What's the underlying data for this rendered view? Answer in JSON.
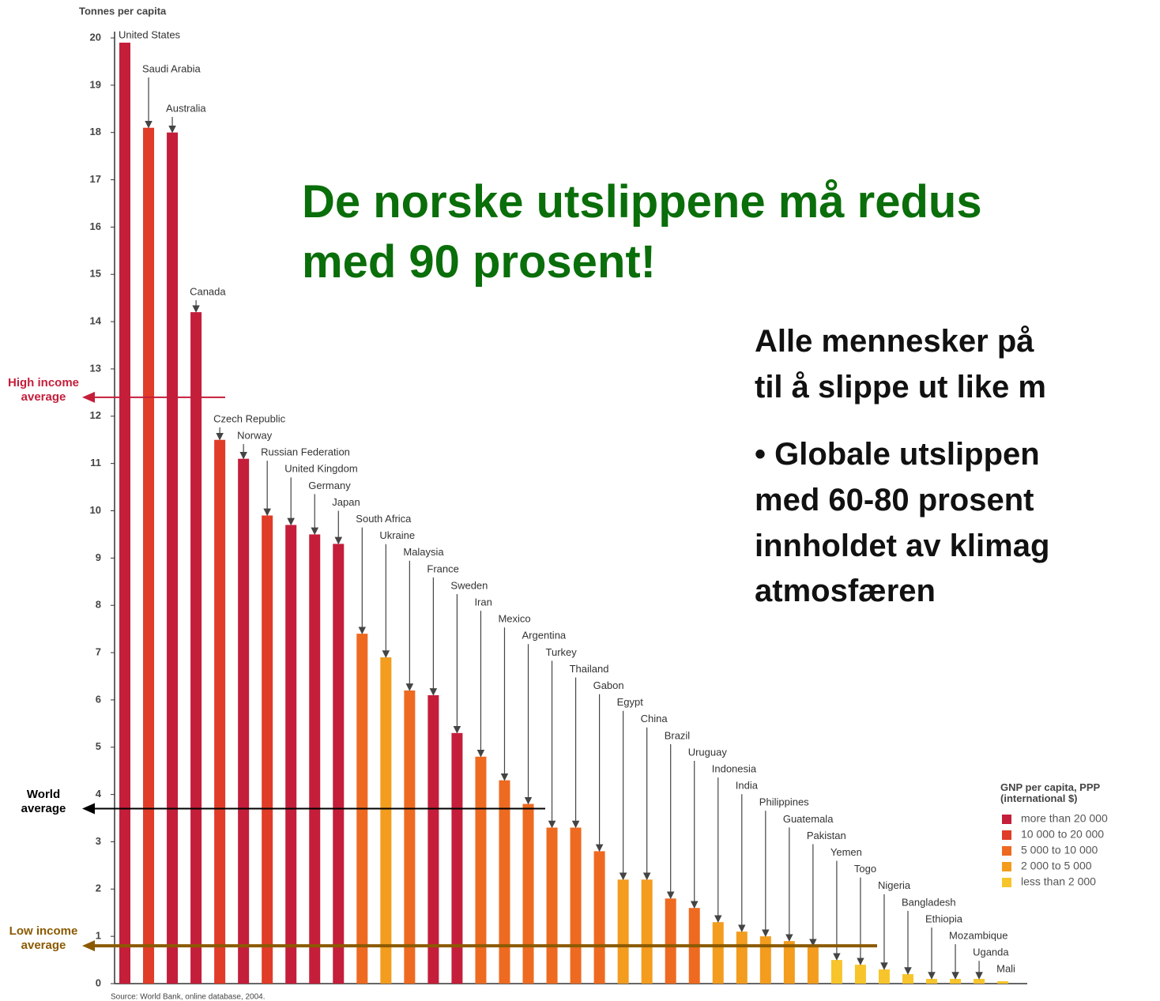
{
  "slide": {
    "title_lines": [
      "De norske utslippene må redus",
      "med 90  prosent!"
    ],
    "text_lines": [
      "Alle mennesker på",
      "til å slippe ut like m",
      "• Globale utslippen",
      "med 60-80 prosent",
      "innholdet av klimag",
      "atmosfæren"
    ]
  },
  "chart_data": {
    "type": "bar",
    "y_label": "Tonnes per capita",
    "categories": [
      "United States",
      "Saudi Arabia",
      "Australia",
      "Canada",
      "Czech Republic",
      "Norway",
      "Russian Federation",
      "United Kingdom",
      "Germany",
      "Japan",
      "South Africa",
      "Ukraine",
      "Malaysia",
      "France",
      "Sweden",
      "Iran",
      "Mexico",
      "Argentina",
      "Turkey",
      "Thailand",
      "Gabon",
      "Egypt",
      "China",
      "Brazil",
      "Uruguay",
      "Indonesia",
      "India",
      "Philippines",
      "Guatemala",
      "Pakistan",
      "Yemen",
      "Togo",
      "Nigeria",
      "Bangladesh",
      "Ethiopia",
      "Mozambique",
      "Uganda",
      "Mali"
    ],
    "values": [
      19.9,
      18.1,
      18.0,
      14.2,
      11.5,
      11.1,
      9.9,
      9.7,
      9.5,
      9.3,
      7.4,
      6.9,
      6.2,
      6.1,
      5.3,
      4.8,
      4.3,
      3.8,
      3.3,
      3.3,
      2.8,
      2.2,
      2.2,
      1.8,
      1.6,
      1.3,
      1.1,
      1.0,
      0.9,
      0.8,
      0.5,
      0.4,
      0.3,
      0.2,
      0.1,
      0.1,
      0.1,
      0.05
    ],
    "colors": [
      "#c41e3a",
      "#e03c28",
      "#c41e3a",
      "#c41e3a",
      "#e03c28",
      "#c41e3a",
      "#e03c28",
      "#c41e3a",
      "#c41e3a",
      "#c41e3a",
      "#ee6a20",
      "#f39c1e",
      "#ee6a20",
      "#c41e3a",
      "#c41e3a",
      "#ee6a20",
      "#ee6a20",
      "#ee6a20",
      "#ee6a20",
      "#ee6a20",
      "#ee6a20",
      "#f39c1e",
      "#f39c1e",
      "#ee6a20",
      "#ee6a20",
      "#f39c1e",
      "#f39c1e",
      "#f39c1e",
      "#f39c1e",
      "#f39c1e",
      "#f7c52b",
      "#f7c52b",
      "#f7c52b",
      "#f7c52b",
      "#f7c52b",
      "#f7c52b",
      "#f7c52b",
      "#f7c52b"
    ],
    "ylim": [
      0,
      20
    ],
    "yticks": [
      0,
      1,
      2,
      3,
      4,
      5,
      6,
      7,
      8,
      9,
      10,
      11,
      12,
      13,
      14,
      15,
      16,
      17,
      18,
      19,
      20
    ],
    "reference_lines": [
      {
        "label": "High income average",
        "value": 12.4,
        "color": "#c41e3a"
      },
      {
        "label": "World average",
        "value": 3.7,
        "color": "#000000"
      },
      {
        "label": "Low income average",
        "value": 0.8,
        "color": "#8b5a00"
      }
    ],
    "legend_title": "GNP per capita, PPP (international $)",
    "legend": [
      {
        "label": "more than 20 000",
        "color": "#c41e3a"
      },
      {
        "label": "10 000 to 20 000",
        "color": "#e03c28"
      },
      {
        "label": "5 000 to 10 000",
        "color": "#ee6a20"
      },
      {
        "label": "2 000 to 5 000",
        "color": "#f39c1e"
      },
      {
        "label": "less than 2 000",
        "color": "#f7c52b"
      }
    ],
    "source": "Source: World Bank, online database, 2004."
  }
}
